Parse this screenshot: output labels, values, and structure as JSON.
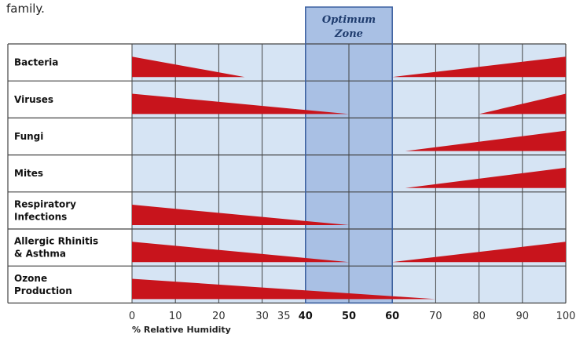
{
  "caption_fragment": "family.",
  "chart_data": {
    "type": "bar",
    "title": "",
    "xlabel": "% Relative Humidity",
    "ylabel": "",
    "xlim": [
      0,
      100
    ],
    "x_ticks": [
      0,
      10,
      20,
      30,
      35,
      40,
      50,
      60,
      70,
      80,
      90,
      100
    ],
    "x_tick_labels": [
      "0",
      "10",
      "20",
      "30",
      "35",
      "40",
      "50",
      "60",
      "70",
      "80",
      "90",
      "100"
    ],
    "bold_ticks": [
      40,
      50,
      60
    ],
    "grid_columns": [
      0,
      10,
      20,
      30,
      40,
      50,
      60,
      70,
      80,
      90,
      100
    ],
    "optimum_zone": {
      "label_line1": "Optimum",
      "label_line2": "Zone",
      "range": [
        40,
        60
      ]
    },
    "categories": [
      {
        "label": [
          "Bacteria"
        ],
        "wedges": [
          {
            "from": 0,
            "to": 26,
            "thick_at": 0
          },
          {
            "from": 60,
            "to": 100,
            "thick_at": 100
          }
        ]
      },
      {
        "label": [
          "Viruses"
        ],
        "wedges": [
          {
            "from": 0,
            "to": 50,
            "thick_at": 0
          },
          {
            "from": 80,
            "to": 100,
            "thick_at": 100
          }
        ]
      },
      {
        "label": [
          "Fungi"
        ],
        "wedges": [
          {
            "from": 63,
            "to": 100,
            "thick_at": 100
          }
        ]
      },
      {
        "label": [
          "Mites"
        ],
        "wedges": [
          {
            "from": 63,
            "to": 100,
            "thick_at": 100
          }
        ]
      },
      {
        "label": [
          "Respiratory",
          "Infections"
        ],
        "wedges": [
          {
            "from": 0,
            "to": 50,
            "thick_at": 0
          }
        ]
      },
      {
        "label": [
          "Allergic Rhinitis",
          "& Asthma"
        ],
        "wedges": [
          {
            "from": 0,
            "to": 50,
            "thick_at": 0
          },
          {
            "from": 60,
            "to": 100,
            "thick_at": 100
          }
        ]
      },
      {
        "label": [
          "Ozone",
          "Production"
        ],
        "wedges": [
          {
            "from": 0,
            "to": 70,
            "thick_at": 0
          }
        ]
      }
    ],
    "colors": {
      "wedge": "#c8141c",
      "grid_bg": "#d6e4f4",
      "zone_bg": "#a9c0e4",
      "zone_border": "#3a5fa0",
      "grid_line": "#444444"
    }
  }
}
